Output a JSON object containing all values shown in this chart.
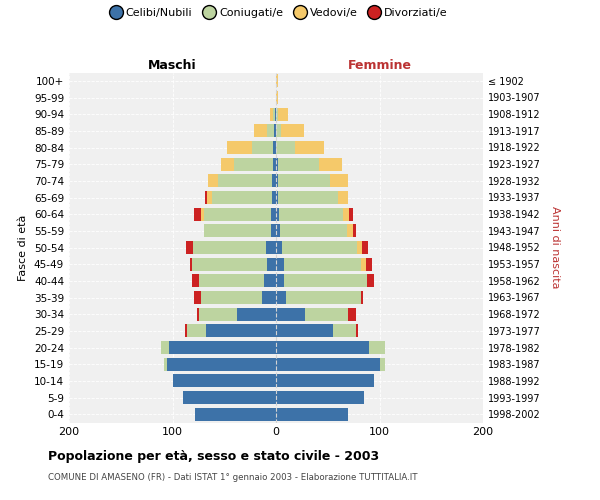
{
  "age_groups": [
    "100+",
    "95-99",
    "90-94",
    "85-89",
    "80-84",
    "75-79",
    "70-74",
    "65-69",
    "60-64",
    "55-59",
    "50-54",
    "45-49",
    "40-44",
    "35-39",
    "30-34",
    "25-29",
    "20-24",
    "15-19",
    "10-14",
    "5-9",
    "0-4"
  ],
  "birth_years": [
    "≤ 1902",
    "1903-1907",
    "1908-1912",
    "1913-1917",
    "1918-1922",
    "1923-1927",
    "1928-1932",
    "1933-1937",
    "1938-1942",
    "1943-1947",
    "1948-1952",
    "1953-1957",
    "1958-1962",
    "1963-1967",
    "1968-1972",
    "1973-1977",
    "1978-1982",
    "1983-1987",
    "1988-1992",
    "1993-1997",
    "1998-2002"
  ],
  "colors": {
    "celibi": "#3d72a8",
    "coniugati": "#bdd4a0",
    "vedovi": "#f5c96a",
    "divorziati": "#cc2222"
  },
  "maschi": {
    "celibi": [
      0,
      0,
      1,
      2,
      3,
      3,
      4,
      4,
      5,
      5,
      10,
      9,
      12,
      14,
      38,
      68,
      103,
      105,
      100,
      90,
      78
    ],
    "coniugati": [
      0,
      0,
      2,
      7,
      20,
      38,
      52,
      58,
      65,
      65,
      70,
      72,
      62,
      58,
      36,
      18,
      8,
      3,
      0,
      0,
      0
    ],
    "vedovi": [
      0,
      0,
      3,
      12,
      24,
      12,
      10,
      5,
      2,
      0,
      0,
      0,
      0,
      0,
      0,
      0,
      0,
      0,
      0,
      0,
      0
    ],
    "divorziati": [
      0,
      0,
      0,
      0,
      0,
      0,
      0,
      2,
      7,
      0,
      7,
      2,
      7,
      7,
      2,
      2,
      0,
      0,
      0,
      0,
      0
    ]
  },
  "femmine": {
    "celibi": [
      0,
      0,
      0,
      0,
      0,
      2,
      2,
      2,
      3,
      4,
      6,
      8,
      8,
      10,
      28,
      55,
      90,
      100,
      95,
      85,
      70
    ],
    "coniugati": [
      0,
      0,
      2,
      5,
      18,
      40,
      50,
      58,
      62,
      65,
      72,
      74,
      80,
      72,
      42,
      22,
      15,
      5,
      0,
      0,
      0
    ],
    "vedovi": [
      2,
      2,
      10,
      22,
      28,
      22,
      18,
      10,
      6,
      5,
      5,
      5,
      0,
      0,
      0,
      0,
      0,
      0,
      0,
      0,
      0
    ],
    "divorziati": [
      0,
      0,
      0,
      0,
      0,
      0,
      0,
      0,
      3,
      3,
      6,
      6,
      7,
      2,
      7,
      2,
      0,
      0,
      0,
      0,
      0
    ]
  },
  "xlim": 200,
  "title": "Popolazione per età, sesso e stato civile - 2003",
  "subtitle": "COMUNE DI AMASENO (FR) - Dati ISTAT 1° gennaio 2003 - Elaborazione TUTTITALIA.IT",
  "ylabel_left": "Fasce di età",
  "ylabel_right": "Anni di nascita",
  "xlabel_left": "Maschi",
  "xlabel_right": "Femmine",
  "legend_labels": [
    "Celibi/Nubili",
    "Coniugati/e",
    "Vedovi/e",
    "Divorziati/e"
  ],
  "bg_color": "#ffffff",
  "plot_bg_color": "#f0f0f0"
}
